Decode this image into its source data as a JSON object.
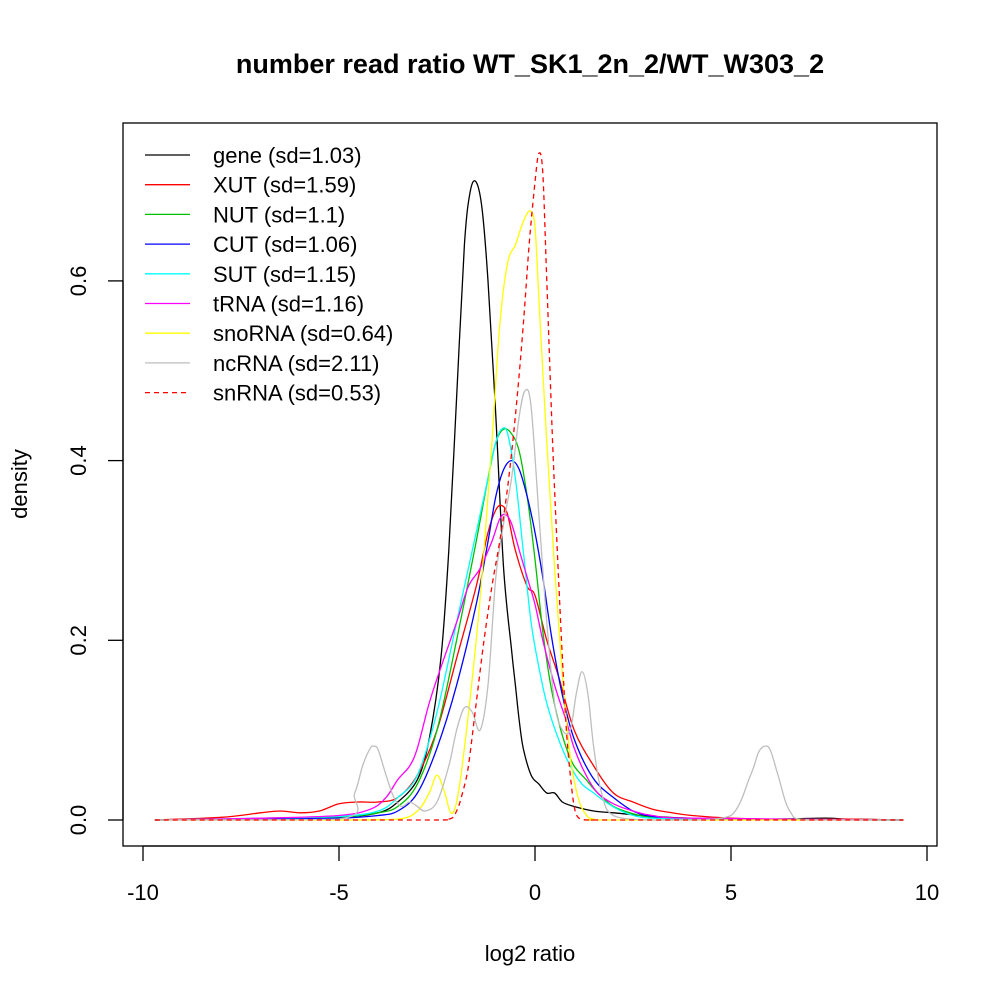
{
  "chart_data": {
    "type": "line",
    "title": "number read ratio WT_SK1_2n_2/WT_W303_2",
    "xlabel": "log2 ratio",
    "ylabel": "density",
    "xlim": [
      -10,
      10
    ],
    "ylim": [
      0,
      0.75
    ],
    "xticks": [
      -10,
      -5,
      0,
      5,
      10
    ],
    "xtick_labels": [
      "-10",
      "-5",
      "0",
      "5",
      "10"
    ],
    "yticks": [
      0.0,
      0.2,
      0.4,
      0.6
    ],
    "ytick_labels": [
      "0.0",
      "0.2",
      "0.4",
      "0.6"
    ],
    "grid": false,
    "legend_position": "top-left",
    "series": [
      {
        "name": "gene (sd=1.03)",
        "color": "#000000",
        "dash": false,
        "x": [
          -9.7,
          -7,
          -5,
          -4,
          -3.5,
          -3,
          -2.7,
          -2.4,
          -2.2,
          -2.0,
          -1.8,
          -1.65,
          -1.5,
          -1.35,
          -1.2,
          -1.0,
          -0.8,
          -0.6,
          -0.5,
          -0.4,
          -0.3,
          -0.1,
          0.1,
          0.3,
          0.5,
          0.7,
          1.0,
          1.5,
          2.0,
          3.0,
          4.0,
          6.0,
          7.4,
          8.0,
          9.4
        ],
        "y": [
          0,
          0.001,
          0.003,
          0.008,
          0.02,
          0.045,
          0.09,
          0.18,
          0.3,
          0.47,
          0.64,
          0.7,
          0.71,
          0.68,
          0.6,
          0.45,
          0.28,
          0.19,
          0.15,
          0.11,
          0.08,
          0.05,
          0.04,
          0.03,
          0.03,
          0.02,
          0.015,
          0.01,
          0.008,
          0.004,
          0.002,
          0.001,
          0.002,
          0.001,
          0
        ]
      },
      {
        "name": "XUT (sd=1.59)",
        "color": "#ff0000",
        "dash": false,
        "x": [
          -9.7,
          -8,
          -7,
          -6.5,
          -6,
          -5.5,
          -5,
          -4.5,
          -4,
          -3.5,
          -3,
          -2.5,
          -2,
          -1.5,
          -1.2,
          -1.0,
          -0.85,
          -0.7,
          -0.5,
          -0.2,
          0,
          0.3,
          0.6,
          1.0,
          1.5,
          2.0,
          2.5,
          3.0,
          3.5,
          4.0,
          5,
          6,
          8,
          9.4
        ],
        "y": [
          0,
          0.003,
          0.008,
          0.01,
          0.008,
          0.01,
          0.018,
          0.02,
          0.02,
          0.025,
          0.05,
          0.1,
          0.18,
          0.26,
          0.32,
          0.345,
          0.35,
          0.34,
          0.3,
          0.26,
          0.25,
          0.2,
          0.16,
          0.1,
          0.06,
          0.03,
          0.02,
          0.012,
          0.008,
          0.005,
          0.002,
          0.001,
          0.001,
          0
        ]
      },
      {
        "name": "NUT (sd=1.1)",
        "color": "#00c000",
        "dash": false,
        "x": [
          -9.7,
          -7,
          -5,
          -4,
          -3.5,
          -3,
          -2.5,
          -2,
          -1.5,
          -1.2,
          -1.0,
          -0.8,
          -0.6,
          -0.4,
          -0.2,
          0,
          0.2,
          0.4,
          0.6,
          0.8,
          1.0,
          1.3,
          1.6,
          2.0,
          2.5,
          3.0,
          4.0,
          5.0,
          9.4
        ],
        "y": [
          0,
          0.001,
          0.003,
          0.008,
          0.015,
          0.04,
          0.1,
          0.2,
          0.31,
          0.38,
          0.42,
          0.435,
          0.43,
          0.41,
          0.36,
          0.29,
          0.21,
          0.15,
          0.11,
          0.08,
          0.06,
          0.045,
          0.03,
          0.015,
          0.007,
          0.003,
          0.001,
          0.001,
          0
        ]
      },
      {
        "name": "CUT (sd=1.06)",
        "color": "#0000ff",
        "dash": false,
        "x": [
          -9.7,
          -7,
          -5,
          -4,
          -3.5,
          -3,
          -2.5,
          -2,
          -1.5,
          -1.2,
          -1.0,
          -0.8,
          -0.6,
          -0.4,
          -0.2,
          0,
          0.2,
          0.4,
          0.6,
          0.8,
          1.0,
          1.3,
          1.6,
          2.0,
          2.5,
          3.0,
          4.0,
          9.4
        ],
        "y": [
          0,
          0.001,
          0.002,
          0.005,
          0.01,
          0.03,
          0.08,
          0.15,
          0.24,
          0.31,
          0.36,
          0.39,
          0.4,
          0.39,
          0.36,
          0.32,
          0.27,
          0.21,
          0.16,
          0.12,
          0.09,
          0.06,
          0.04,
          0.025,
          0.01,
          0.004,
          0.001,
          0
        ]
      },
      {
        "name": "SUT (sd=1.15)",
        "color": "#00ffff",
        "dash": false,
        "x": [
          -9.7,
          -7,
          -5,
          -4,
          -3.5,
          -3,
          -2.5,
          -2,
          -1.5,
          -1.2,
          -1.0,
          -0.85,
          -0.7,
          -0.5,
          -0.3,
          -0.1,
          0.1,
          0.3,
          0.6,
          0.9,
          1.2,
          1.5,
          1.8,
          2.2,
          2.6,
          3.0,
          4.0,
          5.0,
          9.4
        ],
        "y": [
          0,
          0.002,
          0.004,
          0.01,
          0.025,
          0.05,
          0.12,
          0.22,
          0.32,
          0.38,
          0.42,
          0.435,
          0.43,
          0.38,
          0.3,
          0.22,
          0.17,
          0.13,
          0.09,
          0.06,
          0.04,
          0.03,
          0.02,
          0.01,
          0.004,
          0.002,
          0.001,
          0.001,
          0
        ]
      },
      {
        "name": "tRNA (sd=1.16)",
        "color": "#ff00ff",
        "dash": false,
        "x": [
          -9.7,
          -7,
          -5,
          -4.2,
          -3.8,
          -3.5,
          -3.2,
          -3.0,
          -2.7,
          -2.4,
          -2.0,
          -1.7,
          -1.4,
          -1.1,
          -0.9,
          -0.75,
          -0.6,
          -0.4,
          -0.2,
          0,
          0.2,
          0.5,
          0.8,
          1.0,
          1.3,
          1.6,
          2.0,
          2.5,
          3.0,
          4.0,
          9.4
        ],
        "y": [
          0,
          0.002,
          0.005,
          0.012,
          0.025,
          0.045,
          0.06,
          0.08,
          0.13,
          0.17,
          0.22,
          0.26,
          0.28,
          0.31,
          0.335,
          0.34,
          0.33,
          0.3,
          0.27,
          0.24,
          0.2,
          0.15,
          0.11,
          0.08,
          0.05,
          0.03,
          0.018,
          0.01,
          0.005,
          0.002,
          0
        ]
      },
      {
        "name": "snoRNA (sd=0.64)",
        "color": "#ffff00",
        "dash": false,
        "x": [
          -9.7,
          -5,
          -3.5,
          -3.0,
          -2.7,
          -2.5,
          -2.3,
          -2.15,
          -2.0,
          -1.8,
          -1.5,
          -1.3,
          -1.1,
          -0.9,
          -0.7,
          -0.5,
          -0.35,
          -0.2,
          -0.1,
          0,
          0.1,
          0.3,
          0.5,
          0.7,
          0.9,
          1.1,
          1.3,
          1.5,
          2.0,
          9.4
        ],
        "y": [
          0,
          0,
          0.001,
          0.01,
          0.03,
          0.05,
          0.03,
          0.008,
          0.02,
          0.08,
          0.2,
          0.3,
          0.42,
          0.55,
          0.62,
          0.64,
          0.66,
          0.675,
          0.677,
          0.66,
          0.58,
          0.42,
          0.28,
          0.16,
          0.07,
          0.025,
          0.006,
          0.001,
          0,
          0
        ]
      },
      {
        "name": "ncRNA (sd=2.11)",
        "color": "#bebebe",
        "dash": false,
        "x": [
          -9.7,
          -5,
          -4.6,
          -4.4,
          -4.2,
          -4.1,
          -4.0,
          -3.8,
          -3.6,
          -3.4,
          -3.2,
          -3.0,
          -2.8,
          -2.5,
          -2.2,
          -2.0,
          -1.8,
          -1.6,
          -1.4,
          -1.2,
          -1.0,
          -0.8,
          -0.6,
          -0.4,
          -0.25,
          -0.1,
          0.1,
          0.3,
          0.5,
          0.7,
          0.9,
          1.05,
          1.2,
          1.35,
          1.5,
          1.7,
          2.0,
          3.0,
          4.0,
          5.0,
          5.5,
          5.7,
          5.85,
          6.0,
          6.2,
          6.5,
          7.0,
          9.4
        ],
        "y": [
          0,
          0.001,
          0.03,
          0.06,
          0.08,
          0.082,
          0.078,
          0.05,
          0.025,
          0.015,
          0.02,
          0.015,
          0.01,
          0.02,
          0.06,
          0.1,
          0.125,
          0.12,
          0.1,
          0.15,
          0.27,
          0.33,
          0.38,
          0.45,
          0.478,
          0.46,
          0.34,
          0.22,
          0.13,
          0.1,
          0.1,
          0.14,
          0.165,
          0.14,
          0.08,
          0.03,
          0.005,
          0,
          0,
          0.005,
          0.05,
          0.075,
          0.082,
          0.078,
          0.05,
          0.01,
          0,
          0
        ]
      },
      {
        "name": "snRNA (sd=0.53)",
        "color": "#ff0000",
        "dash": true,
        "x": [
          -9.7,
          -3.0,
          -2.2,
          -2.0,
          -1.85,
          -1.7,
          -1.5,
          -1.3,
          -1.1,
          -0.9,
          -0.7,
          -0.5,
          -0.3,
          -0.15,
          0,
          0.1,
          0.2,
          0.3,
          0.45,
          0.6,
          0.7,
          0.8,
          0.9,
          1.0,
          1.1,
          1.3,
          1.5,
          2.0,
          9.4
        ],
        "y": [
          0,
          0,
          0.001,
          0.01,
          0.03,
          0.06,
          0.13,
          0.2,
          0.26,
          0.31,
          0.37,
          0.45,
          0.55,
          0.64,
          0.71,
          0.742,
          0.72,
          0.6,
          0.42,
          0.27,
          0.18,
          0.1,
          0.05,
          0.015,
          0.003,
          0,
          0,
          0,
          0
        ]
      }
    ]
  }
}
